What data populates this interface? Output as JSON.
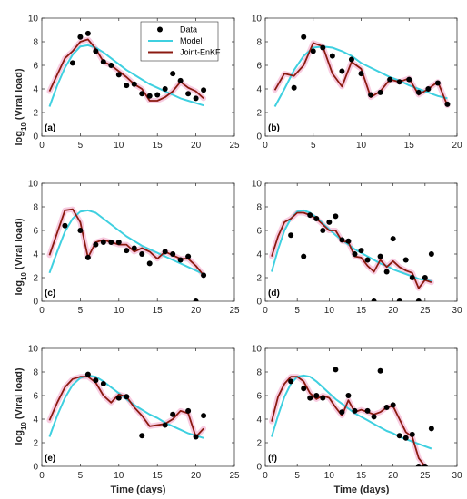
{
  "figure": {
    "xlabel": "Time (days)",
    "ylabel_main": "log",
    "ylabel_sub": "10",
    "ylabel_rest": " (Viral load)"
  },
  "legend": {
    "items": [
      {
        "label": "Data",
        "kind": "marker",
        "color": "#000000"
      },
      {
        "label": "Model",
        "kind": "line",
        "color": "#3fd0e0"
      },
      {
        "label": "Joint-EnKF",
        "kind": "line",
        "color": "#8b1a10"
      }
    ]
  },
  "colors": {
    "model": "#3fd0e0",
    "enkf": "#8b1a10",
    "band": "#f2a3c8",
    "data": "#000000"
  },
  "chart_data": [
    {
      "type": "line",
      "label": "(a)",
      "xlim": [
        0,
        25
      ],
      "ylim": [
        0,
        10
      ],
      "xticks": [
        0,
        5,
        10,
        15,
        20,
        25
      ],
      "yticks": [
        0,
        2,
        4,
        6,
        8,
        10
      ],
      "series": [
        {
          "name": "Data",
          "kind": "scatter",
          "x": [
            4,
            5,
            6,
            7,
            8,
            9,
            10,
            11,
            12,
            13,
            14,
            15,
            16,
            17,
            18,
            19,
            20,
            21
          ],
          "y": [
            6.2,
            8.4,
            8.7,
            7.2,
            6.3,
            6.0,
            5.2,
            4.3,
            4.4,
            3.6,
            3.4,
            3.5,
            4.0,
            5.3,
            4.7,
            3.6,
            3.2,
            3.9
          ]
        },
        {
          "name": "Model",
          "kind": "line",
          "x": [
            1,
            2,
            3,
            4,
            5,
            6,
            7,
            8,
            9,
            10,
            11,
            12,
            13,
            14,
            15,
            16,
            17,
            18,
            19,
            20,
            21
          ],
          "y": [
            2.5,
            4.3,
            5.8,
            6.9,
            7.6,
            7.7,
            7.5,
            7.1,
            6.6,
            6.1,
            5.6,
            5.2,
            4.8,
            4.4,
            4.1,
            3.8,
            3.5,
            3.2,
            3.0,
            2.8,
            2.6
          ]
        },
        {
          "name": "Joint-EnKF",
          "kind": "line",
          "x": [
            1,
            2,
            3,
            4,
            5,
            6,
            7,
            8,
            9,
            10,
            11,
            12,
            13,
            14,
            15,
            16,
            17,
            18,
            19,
            20,
            21
          ],
          "y": [
            3.8,
            5.2,
            6.6,
            7.2,
            8.0,
            8.2,
            7.4,
            6.3,
            6.0,
            5.5,
            5.0,
            4.4,
            4.0,
            3.0,
            3.0,
            3.3,
            3.8,
            4.6,
            4.1,
            3.8,
            3.2
          ]
        }
      ]
    },
    {
      "type": "line",
      "label": "(b)",
      "xlim": [
        0,
        20
      ],
      "ylim": [
        0,
        10
      ],
      "xticks": [
        0,
        5,
        10,
        15,
        20
      ],
      "yticks": [
        0,
        2,
        4,
        6,
        8,
        10
      ],
      "series": [
        {
          "name": "Data",
          "kind": "scatter",
          "x": [
            3,
            4,
            5,
            6,
            7,
            8,
            9,
            10,
            11,
            12,
            13,
            14,
            15,
            16,
            17,
            18,
            19
          ],
          "y": [
            4.1,
            8.4,
            7.2,
            7.5,
            6.8,
            5.5,
            6.5,
            5.3,
            3.5,
            3.7,
            4.8,
            4.6,
            4.8,
            3.7,
            4.0,
            4.5,
            2.7
          ]
        },
        {
          "name": "Model",
          "kind": "line",
          "x": [
            1,
            2,
            3,
            4,
            5,
            6,
            7,
            8,
            9,
            10,
            11,
            12,
            13,
            14,
            15,
            16,
            17,
            18,
            19
          ],
          "y": [
            2.5,
            4.0,
            5.6,
            6.8,
            7.5,
            7.6,
            7.5,
            7.2,
            6.8,
            6.2,
            5.8,
            5.4,
            5.0,
            4.7,
            4.3,
            4.0,
            3.7,
            3.4,
            3.2
          ]
        },
        {
          "name": "Joint-EnKF",
          "kind": "line",
          "x": [
            1,
            2,
            3,
            4,
            5,
            6,
            7,
            8,
            9,
            10,
            11,
            12,
            13,
            14,
            15,
            16,
            17,
            18,
            19
          ],
          "y": [
            3.9,
            5.3,
            5.1,
            6.0,
            7.9,
            7.6,
            5.3,
            4.2,
            6.3,
            5.7,
            3.3,
            3.8,
            4.8,
            4.6,
            4.9,
            3.5,
            4.0,
            4.6,
            2.6
          ]
        }
      ]
    },
    {
      "type": "line",
      "label": "(c)",
      "xlim": [
        0,
        25
      ],
      "ylim": [
        0,
        10
      ],
      "xticks": [
        0,
        5,
        10,
        15,
        20,
        25
      ],
      "yticks": [
        0,
        2,
        4,
        6,
        8,
        10
      ],
      "series": [
        {
          "name": "Data",
          "kind": "scatter",
          "x": [
            3,
            5,
            6,
            7,
            8,
            9,
            10,
            11,
            12,
            13,
            14,
            16,
            17,
            18,
            19,
            20,
            21
          ],
          "y": [
            6.4,
            6.0,
            3.7,
            4.8,
            5.0,
            5.0,
            5.0,
            4.3,
            4.5,
            4.0,
            3.2,
            4.2,
            4.0,
            3.5,
            3.8,
            0.0,
            2.2
          ]
        },
        {
          "name": "Model",
          "kind": "line",
          "x": [
            1,
            2,
            3,
            4,
            5,
            6,
            7,
            8,
            9,
            10,
            11,
            12,
            13,
            14,
            15,
            16,
            17,
            18,
            19,
            20,
            21
          ],
          "y": [
            2.4,
            4.2,
            5.9,
            7.0,
            7.6,
            7.7,
            7.5,
            7.0,
            6.5,
            6.0,
            5.5,
            5.1,
            4.7,
            4.4,
            4.1,
            3.8,
            3.5,
            3.2,
            2.9,
            2.6,
            2.3
          ]
        },
        {
          "name": "Joint-EnKF",
          "kind": "line",
          "x": [
            1,
            2,
            3,
            4,
            5,
            6,
            7,
            8,
            9,
            10,
            11,
            12,
            13,
            14,
            15,
            16,
            17,
            18,
            19,
            20,
            21
          ],
          "y": [
            3.9,
            5.8,
            7.7,
            7.8,
            6.7,
            3.7,
            5.0,
            5.2,
            5.0,
            4.8,
            4.8,
            4.2,
            4.5,
            4.2,
            3.6,
            4.2,
            3.9,
            3.6,
            3.6,
            3.0,
            2.2
          ]
        }
      ]
    },
    {
      "type": "line",
      "label": "(d)",
      "xlim": [
        0,
        30
      ],
      "ylim": [
        0,
        10
      ],
      "xticks": [
        0,
        5,
        10,
        15,
        20,
        25,
        30
      ],
      "yticks": [
        0,
        2,
        4,
        6,
        8,
        10
      ],
      "series": [
        {
          "name": "Data",
          "kind": "scatter",
          "x": [
            4,
            6,
            7,
            8,
            9,
            10,
            11,
            12,
            13,
            14,
            15,
            16,
            17,
            18,
            19,
            20,
            21,
            22,
            23,
            24,
            25,
            26
          ],
          "y": [
            5.6,
            3.8,
            7.3,
            7.0,
            6.0,
            6.7,
            7.2,
            5.2,
            5.1,
            4.0,
            4.3,
            3.5,
            0.0,
            3.8,
            2.5,
            5.3,
            0.0,
            3.5,
            2.0,
            0.0,
            2.0,
            4.0
          ]
        },
        {
          "name": "Model",
          "kind": "line",
          "x": [
            1,
            2,
            3,
            4,
            5,
            6,
            7,
            8,
            9,
            10,
            11,
            12,
            13,
            14,
            15,
            16,
            17,
            18,
            19,
            20,
            21,
            22,
            23,
            24,
            25,
            26
          ],
          "y": [
            2.5,
            4.4,
            6.0,
            7.0,
            7.6,
            7.7,
            7.5,
            7.1,
            6.6,
            6.1,
            5.6,
            5.2,
            4.8,
            4.4,
            4.1,
            3.8,
            3.5,
            3.2,
            3.0,
            2.7,
            2.5,
            2.3,
            2.1,
            1.9,
            1.8,
            1.7
          ]
        },
        {
          "name": "Joint-EnKF",
          "kind": "line",
          "x": [
            1,
            2,
            3,
            4,
            5,
            6,
            7,
            8,
            9,
            10,
            11,
            12,
            13,
            14,
            15,
            16,
            17,
            18,
            19,
            20,
            21,
            22,
            23,
            24,
            25,
            26
          ],
          "y": [
            3.8,
            5.5,
            6.7,
            7.0,
            7.5,
            7.5,
            7.3,
            7.0,
            6.5,
            6.0,
            6.0,
            5.1,
            5.0,
            3.8,
            3.7,
            3.0,
            2.5,
            3.5,
            2.9,
            3.4,
            2.9,
            2.6,
            2.4,
            1.1,
            1.8,
            1.6
          ]
        }
      ]
    },
    {
      "type": "line",
      "label": "(e)",
      "xlim": [
        0,
        25
      ],
      "ylim": [
        0,
        10
      ],
      "xticks": [
        0,
        5,
        10,
        15,
        20,
        25
      ],
      "yticks": [
        0,
        2,
        4,
        6,
        8,
        10
      ],
      "series": [
        {
          "name": "Data",
          "kind": "scatter",
          "x": [
            6,
            7,
            8,
            10,
            11,
            13,
            16,
            17,
            19,
            20,
            21
          ],
          "y": [
            7.8,
            7.3,
            7.0,
            5.8,
            5.9,
            2.6,
            3.5,
            4.4,
            4.7,
            2.5,
            4.3
          ]
        },
        {
          "name": "Model",
          "kind": "line",
          "x": [
            1,
            2,
            3,
            4,
            5,
            6,
            7,
            8,
            9,
            10,
            11,
            12,
            13,
            14,
            15,
            16,
            17,
            18,
            19,
            20,
            21
          ],
          "y": [
            2.5,
            4.3,
            5.8,
            6.9,
            7.5,
            7.7,
            7.6,
            7.2,
            6.7,
            6.2,
            5.7,
            5.2,
            4.8,
            4.4,
            4.1,
            3.7,
            3.4,
            3.1,
            2.8,
            2.6,
            2.4
          ]
        },
        {
          "name": "Joint-EnKF",
          "kind": "line",
          "x": [
            1,
            2,
            3,
            4,
            5,
            6,
            7,
            8,
            9,
            10,
            11,
            12,
            13,
            14,
            15,
            16,
            17,
            18,
            19,
            20,
            21
          ],
          "y": [
            3.9,
            5.4,
            6.7,
            7.4,
            7.6,
            7.6,
            7.1,
            6.0,
            5.4,
            6.1,
            5.9,
            5.0,
            4.3,
            3.4,
            3.5,
            3.6,
            4.0,
            4.7,
            4.5,
            2.5,
            3.2
          ]
        }
      ]
    },
    {
      "type": "line",
      "label": "(f)",
      "xlim": [
        0,
        30
      ],
      "ylim": [
        0,
        10
      ],
      "xticks": [
        0,
        5,
        10,
        15,
        20,
        25,
        30
      ],
      "yticks": [
        0,
        2,
        4,
        6,
        8,
        10
      ],
      "series": [
        {
          "name": "Data",
          "kind": "scatter",
          "x": [
            4,
            6,
            7,
            8,
            9,
            11,
            12,
            13,
            14,
            16,
            17,
            18,
            19,
            20,
            21,
            22,
            23,
            24,
            25,
            26
          ],
          "y": [
            7.2,
            6.6,
            5.8,
            6.0,
            5.8,
            8.2,
            4.6,
            6.0,
            4.7,
            4.7,
            4.2,
            8.1,
            5.0,
            5.2,
            2.6,
            2.4,
            2.7,
            0.0,
            0.0,
            3.2
          ]
        },
        {
          "name": "Model",
          "kind": "line",
          "x": [
            1,
            2,
            3,
            4,
            5,
            6,
            7,
            8,
            9,
            10,
            11,
            12,
            13,
            14,
            15,
            16,
            17,
            18,
            19,
            20,
            21,
            22,
            23,
            24,
            25,
            26
          ],
          "y": [
            2.5,
            4.3,
            5.9,
            7.0,
            7.6,
            7.7,
            7.6,
            7.2,
            6.7,
            6.2,
            5.7,
            5.3,
            4.9,
            4.5,
            4.2,
            3.9,
            3.6,
            3.3,
            3.0,
            2.8,
            2.5,
            2.3,
            2.1,
            1.9,
            1.7,
            1.5
          ]
        },
        {
          "name": "Joint-EnKF",
          "kind": "line",
          "x": [
            1,
            2,
            3,
            4,
            5,
            6,
            7,
            8,
            9,
            10,
            11,
            12,
            13,
            14,
            15,
            16,
            17,
            18,
            19,
            20,
            21,
            22,
            23,
            24,
            25
          ],
          "y": [
            3.8,
            5.9,
            7.0,
            7.6,
            7.6,
            7.2,
            6.2,
            5.7,
            6.0,
            5.8,
            5.0,
            4.3,
            5.6,
            4.6,
            4.8,
            4.6,
            4.4,
            4.6,
            5.0,
            5.1,
            4.0,
            2.9,
            2.5,
            0.7,
            0.0
          ]
        }
      ]
    }
  ]
}
